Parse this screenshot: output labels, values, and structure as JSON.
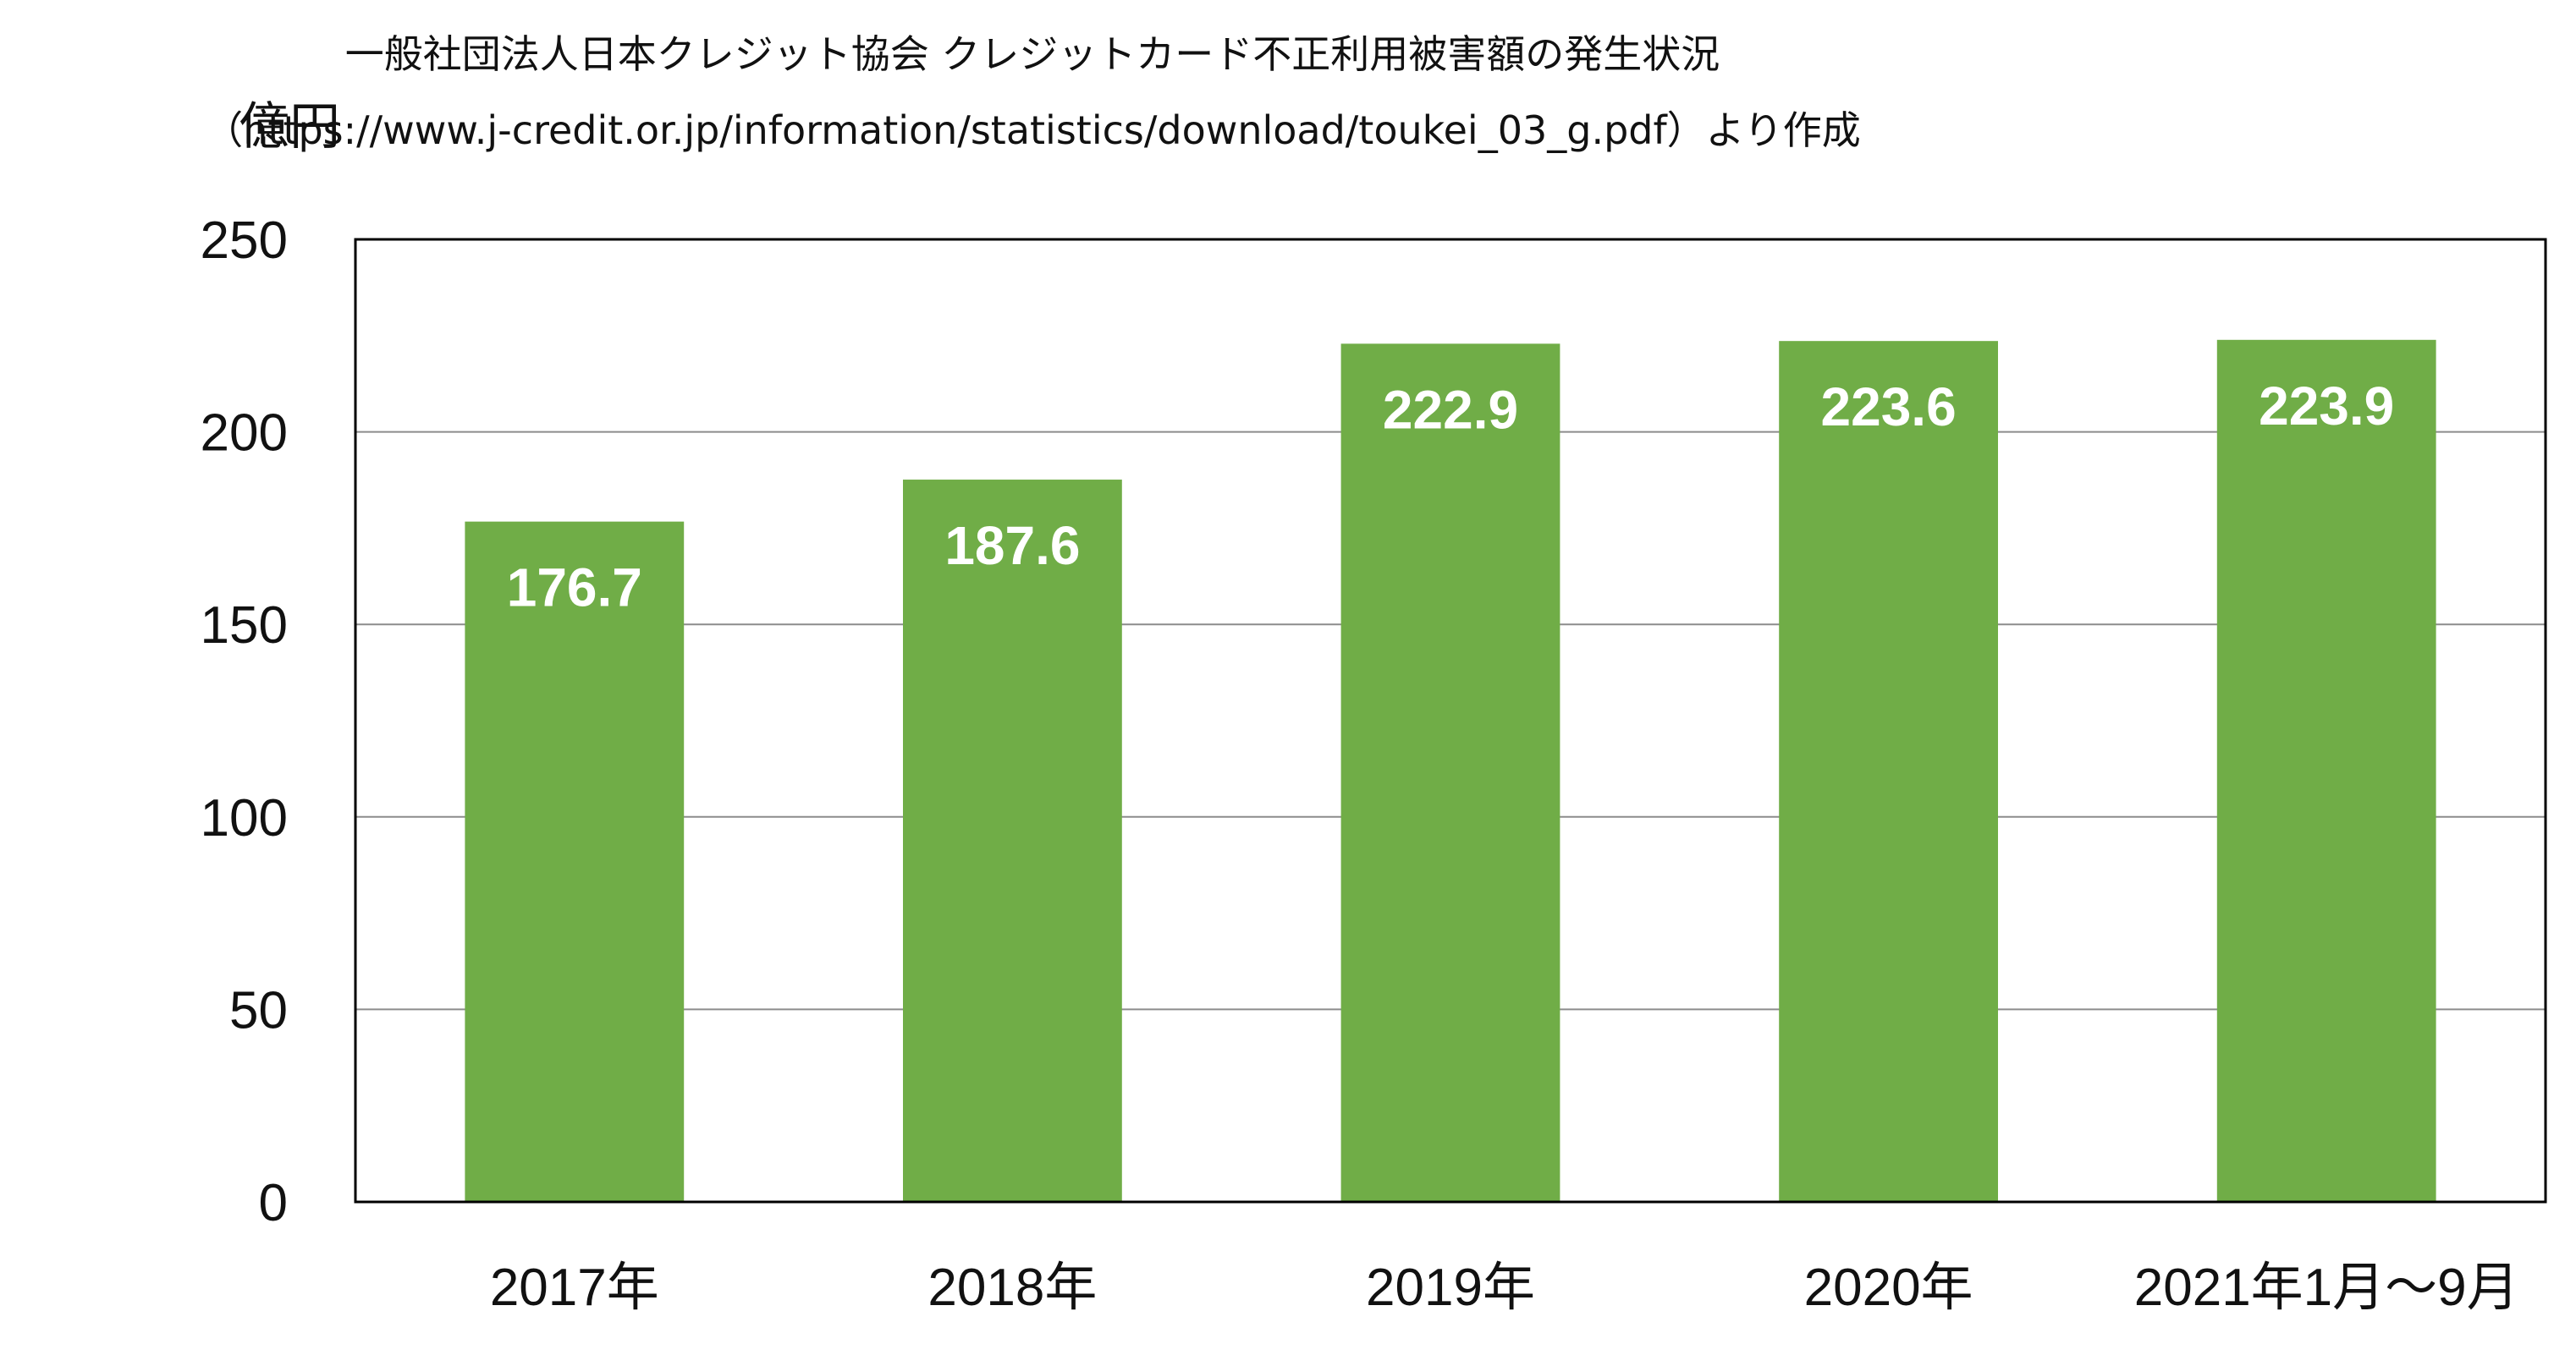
{
  "chart_data": {
    "type": "bar",
    "title": "一般社団法人日本クレジット協会 クレジットカード不正利用被害額の発生状況",
    "subtitle": "（https://www.j-credit.or.jp/information/statistics/download/toukei_03_g.pdf）より作成",
    "ylabel": "億円",
    "xlabel": "",
    "categories": [
      "2017年",
      "2018年",
      "2019年",
      "2020年",
      "2021年1月～9月"
    ],
    "values": [
      176.7,
      187.6,
      222.9,
      223.6,
      223.9
    ],
    "value_labels": [
      "176.7",
      "187.6",
      "222.9",
      "223.6",
      "223.9"
    ],
    "ylim": [
      0,
      250
    ],
    "yticks": [
      0,
      50,
      100,
      150,
      200,
      250
    ],
    "ytick_labels": [
      "0",
      "50",
      "100",
      "150",
      "200",
      "250"
    ],
    "grid": true,
    "legend": "none",
    "bar_color": "#70AD47",
    "label_color": "#FFFFFF"
  }
}
